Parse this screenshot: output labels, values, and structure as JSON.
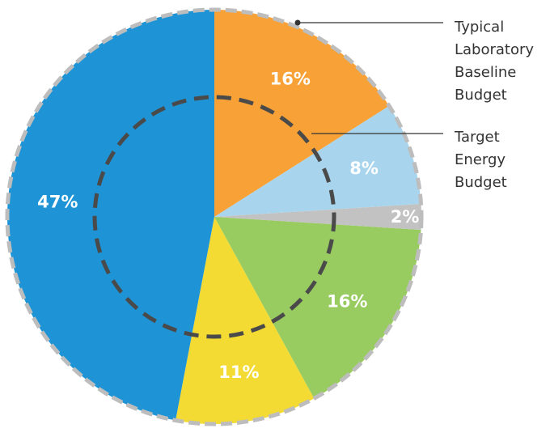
{
  "chart_data": {
    "type": "pie",
    "slices": [
      {
        "value": 16,
        "label": "16%",
        "color": "#F7A136"
      },
      {
        "value": 8,
        "label": "8%",
        "color": "#A8D5ED"
      },
      {
        "value": 2,
        "label": "2%",
        "color": "#C2C2C2"
      },
      {
        "value": 16,
        "label": "16%",
        "color": "#98CB60"
      },
      {
        "value": 11,
        "label": "11%",
        "color": "#F3DB34"
      },
      {
        "value": 47,
        "label": "47%",
        "color": "#1E94D6"
      }
    ],
    "annotations": [
      {
        "text": "Typical Laboratory Baseline Budget",
        "lines": [
          "Typical",
          "Laboratory",
          "Baseline",
          "Budget"
        ]
      },
      {
        "text": "Target Energy Budget",
        "lines": [
          "Target",
          "Energy",
          "Budget"
        ]
      }
    ],
    "outer_ring_style": "dashed-gray",
    "inner_ring_style": "dashed-dark",
    "colors": {
      "outer_ring": "#BDBDBD",
      "inner_ring": "#4A4A4A",
      "leader_line": "#333333",
      "label_text": "#FFFFFF",
      "annotation_text": "#333333"
    }
  }
}
